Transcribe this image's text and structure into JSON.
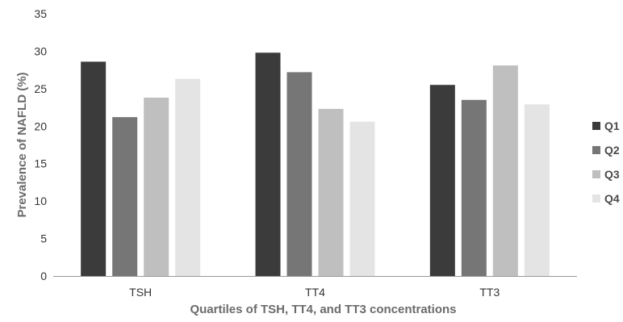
{
  "chart_data": {
    "type": "bar",
    "title": "",
    "xlabel": "Quartiles of TSH, TT4, and TT3 concentrations",
    "ylabel": "Prevalence of NAFLD (%)",
    "categories": [
      "TSH",
      "TT4",
      "TT3"
    ],
    "ylim": [
      0,
      35
    ],
    "yticks": [
      0,
      5,
      10,
      15,
      20,
      25,
      30,
      35
    ],
    "grid": false,
    "legend_position": "right",
    "series": [
      {
        "name": "Q1",
        "color": "#3b3b3b",
        "values": [
          28.6,
          29.8,
          25.5
        ]
      },
      {
        "name": "Q2",
        "color": "#767676",
        "values": [
          21.2,
          27.2,
          23.5
        ]
      },
      {
        "name": "Q3",
        "color": "#bfbfbf",
        "values": [
          23.8,
          22.3,
          28.1
        ]
      },
      {
        "name": "Q4",
        "color": "#e4e4e4",
        "values": [
          26.3,
          20.6,
          22.9
        ]
      }
    ]
  }
}
